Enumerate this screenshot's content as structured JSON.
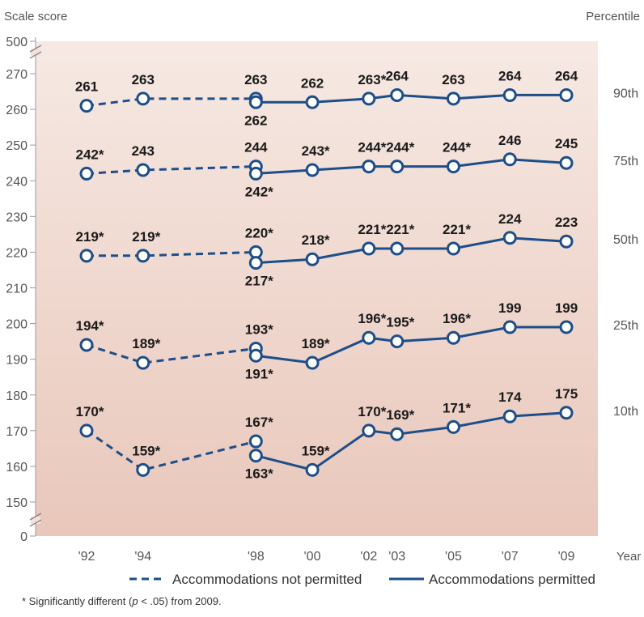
{
  "chart_data": {
    "type": "line",
    "ylabel": "Scale score",
    "right_label": "Percentile",
    "xlabel": "Year",
    "ylim": [
      150,
      270
    ],
    "y_top_tick": "500",
    "y_bottom_tick": "0",
    "y_ticks": [
      "150",
      "160",
      "170",
      "180",
      "190",
      "200",
      "210",
      "220",
      "230",
      "240",
      "250",
      "260",
      "270"
    ],
    "x_ticks": [
      "'92",
      "'94",
      "'98",
      "'00",
      "'02",
      "'03",
      "'05",
      "'07",
      "'09"
    ],
    "x_years": [
      1992,
      1994,
      1998,
      2000,
      2002,
      2003,
      2005,
      2007,
      2009
    ],
    "legend": {
      "not_permitted": "Accommodations not permitted",
      "permitted": "Accommodations permitted"
    },
    "colors": {
      "line": "#1d4e89",
      "background_top": "#f6e9e3",
      "background_bottom": "#e9c7bb"
    },
    "footnote": {
      "prefix": "* Significantly different (",
      "p": "p",
      "suffix": " < .05) from 2009."
    },
    "percentiles": [
      {
        "name": "90th",
        "not_permitted": [
          {
            "year": 1992,
            "value": 261,
            "label": "261"
          },
          {
            "year": 1994,
            "value": 263,
            "label": "263"
          },
          {
            "year": 1998,
            "value": 263,
            "label": "263"
          }
        ],
        "permitted": [
          {
            "year": 1998,
            "value": 262,
            "label": "262"
          },
          {
            "year": 2000,
            "value": 262,
            "label": "262"
          },
          {
            "year": 2002,
            "value": 263,
            "label": "263*"
          },
          {
            "year": 2003,
            "value": 264,
            "label": "264"
          },
          {
            "year": 2005,
            "value": 263,
            "label": "263"
          },
          {
            "year": 2007,
            "value": 264,
            "label": "264"
          },
          {
            "year": 2009,
            "value": 264,
            "label": "264"
          }
        ]
      },
      {
        "name": "75th",
        "not_permitted": [
          {
            "year": 1992,
            "value": 242,
            "label": "242*"
          },
          {
            "year": 1994,
            "value": 243,
            "label": "243"
          },
          {
            "year": 1998,
            "value": 244,
            "label": "244"
          }
        ],
        "permitted": [
          {
            "year": 1998,
            "value": 242,
            "label": "242*"
          },
          {
            "year": 2000,
            "value": 243,
            "label": "243*"
          },
          {
            "year": 2002,
            "value": 244,
            "label": "244*"
          },
          {
            "year": 2003,
            "value": 244,
            "label": "244*"
          },
          {
            "year": 2005,
            "value": 244,
            "label": "244*"
          },
          {
            "year": 2007,
            "value": 246,
            "label": "246"
          },
          {
            "year": 2009,
            "value": 245,
            "label": "245"
          }
        ]
      },
      {
        "name": "50th",
        "not_permitted": [
          {
            "year": 1992,
            "value": 219,
            "label": "219*"
          },
          {
            "year": 1994,
            "value": 219,
            "label": "219*"
          },
          {
            "year": 1998,
            "value": 220,
            "label": "220*"
          }
        ],
        "permitted": [
          {
            "year": 1998,
            "value": 217,
            "label": "217*"
          },
          {
            "year": 2000,
            "value": 218,
            "label": "218*"
          },
          {
            "year": 2002,
            "value": 221,
            "label": "221*"
          },
          {
            "year": 2003,
            "value": 221,
            "label": "221*"
          },
          {
            "year": 2005,
            "value": 221,
            "label": "221*"
          },
          {
            "year": 2007,
            "value": 224,
            "label": "224"
          },
          {
            "year": 2009,
            "value": 223,
            "label": "223"
          }
        ]
      },
      {
        "name": "25th",
        "not_permitted": [
          {
            "year": 1992,
            "value": 194,
            "label": "194*"
          },
          {
            "year": 1994,
            "value": 189,
            "label": "189*"
          },
          {
            "year": 1998,
            "value": 193,
            "label": "193*"
          }
        ],
        "permitted": [
          {
            "year": 1998,
            "value": 191,
            "label": "191*"
          },
          {
            "year": 2000,
            "value": 189,
            "label": "189*"
          },
          {
            "year": 2002,
            "value": 196,
            "label": "196*"
          },
          {
            "year": 2003,
            "value": 195,
            "label": "195*"
          },
          {
            "year": 2005,
            "value": 196,
            "label": "196*"
          },
          {
            "year": 2007,
            "value": 199,
            "label": "199"
          },
          {
            "year": 2009,
            "value": 199,
            "label": "199"
          }
        ]
      },
      {
        "name": "10th",
        "not_permitted": [
          {
            "year": 1992,
            "value": 170,
            "label": "170*"
          },
          {
            "year": 1994,
            "value": 159,
            "label": "159*"
          },
          {
            "year": 1998,
            "value": 167,
            "label": "167*"
          }
        ],
        "permitted": [
          {
            "year": 1998,
            "value": 163,
            "label": "163*"
          },
          {
            "year": 2000,
            "value": 159,
            "label": "159*"
          },
          {
            "year": 2002,
            "value": 170,
            "label": "170*"
          },
          {
            "year": 2003,
            "value": 169,
            "label": "169*"
          },
          {
            "year": 2005,
            "value": 171,
            "label": "171*"
          },
          {
            "year": 2007,
            "value": 174,
            "label": "174"
          },
          {
            "year": 2009,
            "value": 175,
            "label": "175"
          }
        ]
      }
    ]
  }
}
